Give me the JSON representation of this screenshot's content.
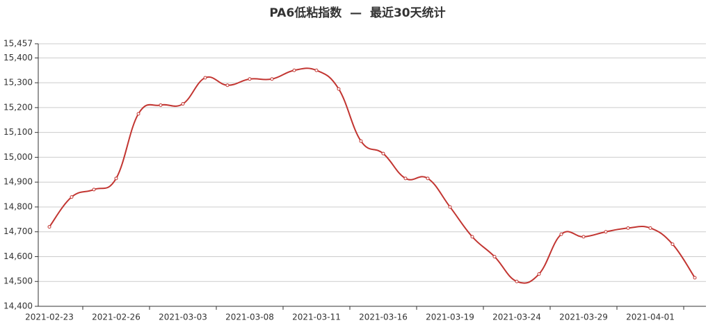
{
  "chart_data": {
    "type": "line",
    "title": "PA6低粘指数  —  最近30天统计",
    "categories": [
      "2021-02-23",
      null,
      null,
      "2021-02-26",
      null,
      null,
      "2021-03-03",
      null,
      null,
      "2021-03-08",
      null,
      null,
      "2021-03-11",
      null,
      null,
      "2021-03-16",
      null,
      null,
      "2021-03-19",
      null,
      null,
      "2021-03-24",
      null,
      null,
      "2021-03-29",
      null,
      null,
      "2021-04-01",
      null,
      null
    ],
    "values": [
      14720,
      14840,
      14870,
      14915,
      15175,
      15210,
      15215,
      15320,
      15290,
      15315,
      15315,
      15350,
      15350,
      15275,
      15065,
      15015,
      14915,
      14915,
      14800,
      14680,
      14600,
      14500,
      14530,
      14690,
      14680,
      14700,
      14715,
      14715,
      14650,
      14515
    ],
    "color": "#c23531",
    "ylim": [
      14400,
      15457
    ],
    "yticks": [
      {
        "value": 14400,
        "label": "14,400"
      },
      {
        "value": 14500,
        "label": "14,500"
      },
      {
        "value": 14600,
        "label": "14,600"
      },
      {
        "value": 14700,
        "label": "14,700"
      },
      {
        "value": 14800,
        "label": "14,800"
      },
      {
        "value": 14900,
        "label": "14,900"
      },
      {
        "value": 15000,
        "label": "15,000"
      },
      {
        "value": 15100,
        "label": "15,100"
      },
      {
        "value": 15200,
        "label": "15,200"
      },
      {
        "value": 15300,
        "label": "15,300"
      },
      {
        "value": 15400,
        "label": "15,400"
      },
      {
        "value": 15457,
        "label": "15,457"
      }
    ],
    "grid": true
  }
}
